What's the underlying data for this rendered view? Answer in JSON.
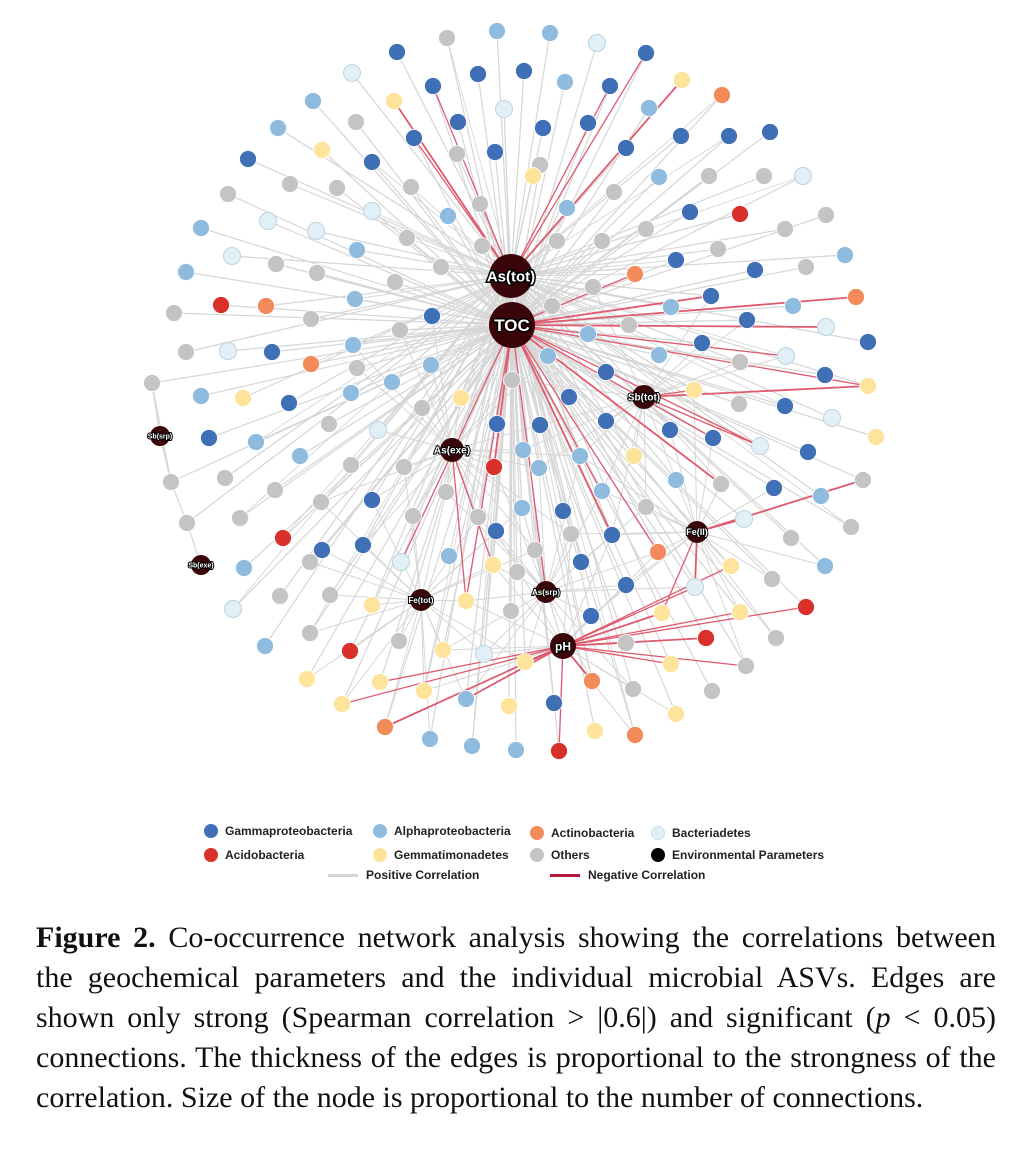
{
  "env_nodes": [
    {
      "id": "AsTot",
      "label": "As(tot)"
    },
    {
      "id": "TOC",
      "label": "TOC"
    },
    {
      "id": "SbTot",
      "label": "Sb(tot)"
    },
    {
      "id": "AsExe",
      "label": "As(exe)"
    },
    {
      "id": "FeII",
      "label": "Fe(II)"
    },
    {
      "id": "AsSrp",
      "label": "As(srp)"
    },
    {
      "id": "FeTot",
      "label": "Fe(tot)"
    },
    {
      "id": "pH",
      "label": "pH"
    },
    {
      "id": "SbSrp",
      "label": "Sb(srp)"
    },
    {
      "id": "SbExe",
      "label": "Sb(exe)"
    }
  ],
  "colors": {
    "gamma": "#3f6fb5",
    "alpha": "#8fbcde",
    "actino": "#f28a5a",
    "bactero": "#e1f0f7",
    "acido": "#d9302b",
    "gemma": "#fde49a",
    "others": "#c4c4c4",
    "env": "#3a0509",
    "positive": "#d6d6d6",
    "negative": "#e05a6e"
  },
  "legend": [
    {
      "key": "gamma",
      "label": "Gammaproteobacteria"
    },
    {
      "key": "alpha",
      "label": "Alphaproteobacteria"
    },
    {
      "key": "actino",
      "label": "Actinobacteria"
    },
    {
      "key": "bactero",
      "label": "Bacteriadetes"
    },
    {
      "key": "acido",
      "label": "Acidobacteria"
    },
    {
      "key": "gemma",
      "label": "Gemmatimonadetes"
    },
    {
      "key": "others",
      "label": "Others"
    },
    {
      "key": "env",
      "label": "Environmental Parameters"
    }
  ],
  "legend_lines": [
    {
      "key": "positive",
      "label": "Positive Correlation"
    },
    {
      "key": "negative",
      "label": "Negative Correlation"
    }
  ],
  "caption": {
    "fig_label": "Figure 2.",
    "text_1": " Co-occurrence network analysis showing the correlations between the geochemical parameters and the individual microbial ASVs. Edges are shown only strong (Spearman correlation > |0.6|) and significant (",
    "p_symbol": "p",
    "text_2": " < 0.05) connections. The thickness of the edges is proportional to the strongness of the correlation. Size of the node is proportional to the number of connections."
  }
}
